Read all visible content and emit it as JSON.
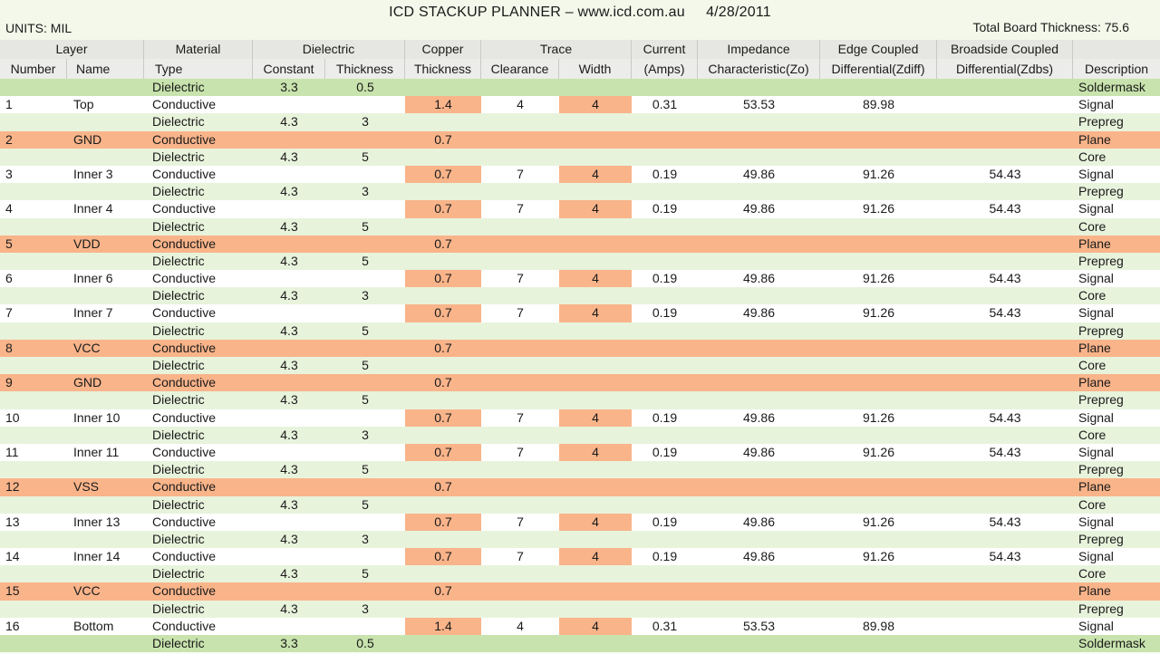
{
  "title": "ICD STACKUP PLANNER – www.icd.com.au     4/28/2011",
  "units_label": "UNITS: MIL",
  "total_thickness_label": "Total Board Thickness: 75.6",
  "colors": {
    "soldermask_row": "#c8e3ad",
    "dielectric_row": "#e8f3dc",
    "conductive_row": "#ffffff",
    "plane_row": "#f9b48a",
    "highlight_cell": "#f9b48a",
    "header": "#e6e6e2"
  },
  "header_groups": [
    "Layer",
    "Material",
    "Dielectric",
    "Copper",
    "Trace",
    "Current",
    "Impedance",
    "Edge Coupled",
    "Broadside Coupled",
    ""
  ],
  "columns": [
    "Number",
    "Name",
    "Type",
    "Constant",
    "Thickness",
    "Thickness",
    "Clearance",
    "Width",
    "(Amps)",
    "Characteristic(Zo)",
    "Differential(Zdiff)",
    "Differential(Zdbs)",
    "Description"
  ],
  "rows": [
    {
      "kind": "sm",
      "num": "",
      "name": "",
      "type": "Dielectric",
      "dk": "3.3",
      "dth": "0.5",
      "cu": "",
      "clr": "",
      "w": "",
      "amps": "",
      "zo": "",
      "zdiff": "",
      "zdbs": "",
      "desc": "Soldermask"
    },
    {
      "kind": "cond",
      "num": "1",
      "name": "Top",
      "type": "Conductive",
      "dk": "",
      "dth": "",
      "cu": "1.4",
      "clr": "4",
      "w": "4",
      "amps": "0.31",
      "zo": "53.53",
      "zdiff": "89.98",
      "zdbs": "",
      "desc": "Signal"
    },
    {
      "kind": "diel",
      "num": "",
      "name": "",
      "type": "Dielectric",
      "dk": "4.3",
      "dth": "3",
      "cu": "",
      "clr": "",
      "w": "",
      "amps": "",
      "zo": "",
      "zdiff": "",
      "zdbs": "",
      "desc": "Prepreg"
    },
    {
      "kind": "plane",
      "num": "2",
      "name": "GND",
      "type": "Conductive",
      "dk": "",
      "dth": "",
      "cu": "0.7",
      "clr": "",
      "w": "",
      "amps": "",
      "zo": "",
      "zdiff": "",
      "zdbs": "",
      "desc": "Plane"
    },
    {
      "kind": "diel",
      "num": "",
      "name": "",
      "type": "Dielectric",
      "dk": "4.3",
      "dth": "5",
      "cu": "",
      "clr": "",
      "w": "",
      "amps": "",
      "zo": "",
      "zdiff": "",
      "zdbs": "",
      "desc": "Core"
    },
    {
      "kind": "cond",
      "num": "3",
      "name": "Inner 3",
      "type": "Conductive",
      "dk": "",
      "dth": "",
      "cu": "0.7",
      "clr": "7",
      "w": "4",
      "amps": "0.19",
      "zo": "49.86",
      "zdiff": "91.26",
      "zdbs": "54.43",
      "desc": "Signal"
    },
    {
      "kind": "diel",
      "num": "",
      "name": "",
      "type": "Dielectric",
      "dk": "4.3",
      "dth": "3",
      "cu": "",
      "clr": "",
      "w": "",
      "amps": "",
      "zo": "",
      "zdiff": "",
      "zdbs": "",
      "desc": "Prepreg"
    },
    {
      "kind": "cond",
      "num": "4",
      "name": "Inner 4",
      "type": "Conductive",
      "dk": "",
      "dth": "",
      "cu": "0.7",
      "clr": "7",
      "w": "4",
      "amps": "0.19",
      "zo": "49.86",
      "zdiff": "91.26",
      "zdbs": "54.43",
      "desc": "Signal"
    },
    {
      "kind": "diel",
      "num": "",
      "name": "",
      "type": "Dielectric",
      "dk": "4.3",
      "dth": "5",
      "cu": "",
      "clr": "",
      "w": "",
      "amps": "",
      "zo": "",
      "zdiff": "",
      "zdbs": "",
      "desc": "Core"
    },
    {
      "kind": "plane",
      "num": "5",
      "name": "VDD",
      "type": "Conductive",
      "dk": "",
      "dth": "",
      "cu": "0.7",
      "clr": "",
      "w": "",
      "amps": "",
      "zo": "",
      "zdiff": "",
      "zdbs": "",
      "desc": "Plane"
    },
    {
      "kind": "diel",
      "num": "",
      "name": "",
      "type": "Dielectric",
      "dk": "4.3",
      "dth": "5",
      "cu": "",
      "clr": "",
      "w": "",
      "amps": "",
      "zo": "",
      "zdiff": "",
      "zdbs": "",
      "desc": "Prepreg"
    },
    {
      "kind": "cond",
      "num": "6",
      "name": "Inner 6",
      "type": "Conductive",
      "dk": "",
      "dth": "",
      "cu": "0.7",
      "clr": "7",
      "w": "4",
      "amps": "0.19",
      "zo": "49.86",
      "zdiff": "91.26",
      "zdbs": "54.43",
      "desc": "Signal"
    },
    {
      "kind": "diel",
      "num": "",
      "name": "",
      "type": "Dielectric",
      "dk": "4.3",
      "dth": "3",
      "cu": "",
      "clr": "",
      "w": "",
      "amps": "",
      "zo": "",
      "zdiff": "",
      "zdbs": "",
      "desc": "Core"
    },
    {
      "kind": "cond",
      "num": "7",
      "name": "Inner 7",
      "type": "Conductive",
      "dk": "",
      "dth": "",
      "cu": "0.7",
      "clr": "7",
      "w": "4",
      "amps": "0.19",
      "zo": "49.86",
      "zdiff": "91.26",
      "zdbs": "54.43",
      "desc": "Signal"
    },
    {
      "kind": "diel",
      "num": "",
      "name": "",
      "type": "Dielectric",
      "dk": "4.3",
      "dth": "5",
      "cu": "",
      "clr": "",
      "w": "",
      "amps": "",
      "zo": "",
      "zdiff": "",
      "zdbs": "",
      "desc": "Prepreg"
    },
    {
      "kind": "plane",
      "num": "8",
      "name": "VCC",
      "type": "Conductive",
      "dk": "",
      "dth": "",
      "cu": "0.7",
      "clr": "",
      "w": "",
      "amps": "",
      "zo": "",
      "zdiff": "",
      "zdbs": "",
      "desc": "Plane"
    },
    {
      "kind": "diel",
      "num": "",
      "name": "",
      "type": "Dielectric",
      "dk": "4.3",
      "dth": "5",
      "cu": "",
      "clr": "",
      "w": "",
      "amps": "",
      "zo": "",
      "zdiff": "",
      "zdbs": "",
      "desc": "Core"
    },
    {
      "kind": "plane",
      "num": "9",
      "name": "GND",
      "type": "Conductive",
      "dk": "",
      "dth": "",
      "cu": "0.7",
      "clr": "",
      "w": "",
      "amps": "",
      "zo": "",
      "zdiff": "",
      "zdbs": "",
      "desc": "Plane"
    },
    {
      "kind": "diel",
      "num": "",
      "name": "",
      "type": "Dielectric",
      "dk": "4.3",
      "dth": "5",
      "cu": "",
      "clr": "",
      "w": "",
      "amps": "",
      "zo": "",
      "zdiff": "",
      "zdbs": "",
      "desc": "Prepreg"
    },
    {
      "kind": "cond",
      "num": "10",
      "name": "Inner 10",
      "type": "Conductive",
      "dk": "",
      "dth": "",
      "cu": "0.7",
      "clr": "7",
      "w": "4",
      "amps": "0.19",
      "zo": "49.86",
      "zdiff": "91.26",
      "zdbs": "54.43",
      "desc": "Signal"
    },
    {
      "kind": "diel",
      "num": "",
      "name": "",
      "type": "Dielectric",
      "dk": "4.3",
      "dth": "3",
      "cu": "",
      "clr": "",
      "w": "",
      "amps": "",
      "zo": "",
      "zdiff": "",
      "zdbs": "",
      "desc": "Core"
    },
    {
      "kind": "cond",
      "num": "11",
      "name": "Inner 11",
      "type": "Conductive",
      "dk": "",
      "dth": "",
      "cu": "0.7",
      "clr": "7",
      "w": "4",
      "amps": "0.19",
      "zo": "49.86",
      "zdiff": "91.26",
      "zdbs": "54.43",
      "desc": "Signal"
    },
    {
      "kind": "diel",
      "num": "",
      "name": "",
      "type": "Dielectric",
      "dk": "4.3",
      "dth": "5",
      "cu": "",
      "clr": "",
      "w": "",
      "amps": "",
      "zo": "",
      "zdiff": "",
      "zdbs": "",
      "desc": "Prepreg"
    },
    {
      "kind": "plane",
      "num": "12",
      "name": "VSS",
      "type": "Conductive",
      "dk": "",
      "dth": "",
      "cu": "0.7",
      "clr": "",
      "w": "",
      "amps": "",
      "zo": "",
      "zdiff": "",
      "zdbs": "",
      "desc": "Plane"
    },
    {
      "kind": "diel",
      "num": "",
      "name": "",
      "type": "Dielectric",
      "dk": "4.3",
      "dth": "5",
      "cu": "",
      "clr": "",
      "w": "",
      "amps": "",
      "zo": "",
      "zdiff": "",
      "zdbs": "",
      "desc": "Core"
    },
    {
      "kind": "cond",
      "num": "13",
      "name": "Inner 13",
      "type": "Conductive",
      "dk": "",
      "dth": "",
      "cu": "0.7",
      "clr": "7",
      "w": "4",
      "amps": "0.19",
      "zo": "49.86",
      "zdiff": "91.26",
      "zdbs": "54.43",
      "desc": "Signal"
    },
    {
      "kind": "diel",
      "num": "",
      "name": "",
      "type": "Dielectric",
      "dk": "4.3",
      "dth": "3",
      "cu": "",
      "clr": "",
      "w": "",
      "amps": "",
      "zo": "",
      "zdiff": "",
      "zdbs": "",
      "desc": "Prepreg"
    },
    {
      "kind": "cond",
      "num": "14",
      "name": "Inner 14",
      "type": "Conductive",
      "dk": "",
      "dth": "",
      "cu": "0.7",
      "clr": "7",
      "w": "4",
      "amps": "0.19",
      "zo": "49.86",
      "zdiff": "91.26",
      "zdbs": "54.43",
      "desc": "Signal"
    },
    {
      "kind": "diel",
      "num": "",
      "name": "",
      "type": "Dielectric",
      "dk": "4.3",
      "dth": "5",
      "cu": "",
      "clr": "",
      "w": "",
      "amps": "",
      "zo": "",
      "zdiff": "",
      "zdbs": "",
      "desc": "Core"
    },
    {
      "kind": "plane",
      "num": "15",
      "name": "VCC",
      "type": "Conductive",
      "dk": "",
      "dth": "",
      "cu": "0.7",
      "clr": "",
      "w": "",
      "amps": "",
      "zo": "",
      "zdiff": "",
      "zdbs": "",
      "desc": "Plane"
    },
    {
      "kind": "diel",
      "num": "",
      "name": "",
      "type": "Dielectric",
      "dk": "4.3",
      "dth": "3",
      "cu": "",
      "clr": "",
      "w": "",
      "amps": "",
      "zo": "",
      "zdiff": "",
      "zdbs": "",
      "desc": "Prepreg"
    },
    {
      "kind": "cond",
      "num": "16",
      "name": "Bottom",
      "type": "Conductive",
      "dk": "",
      "dth": "",
      "cu": "1.4",
      "clr": "4",
      "w": "4",
      "amps": "0.31",
      "zo": "53.53",
      "zdiff": "89.98",
      "zdbs": "",
      "desc": "Signal"
    },
    {
      "kind": "sm",
      "num": "",
      "name": "",
      "type": "Dielectric",
      "dk": "3.3",
      "dth": "0.5",
      "cu": "",
      "clr": "",
      "w": "",
      "amps": "",
      "zo": "",
      "zdiff": "",
      "zdbs": "",
      "desc": "Soldermask"
    }
  ]
}
